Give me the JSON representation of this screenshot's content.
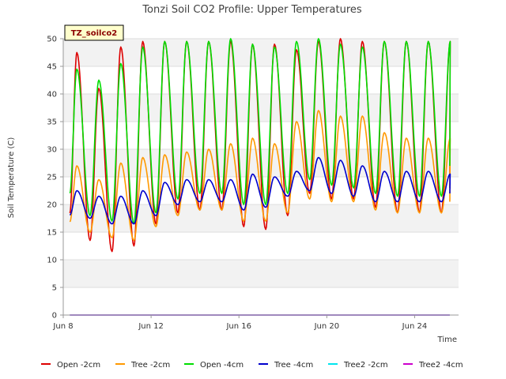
{
  "chart_data": {
    "type": "line",
    "title": "Tonzi Soil CO2 Profile: Upper Temperatures",
    "xlabel": "Time",
    "ylabel": "Soil Temperature (C)",
    "ylim": [
      0,
      50
    ],
    "xlim": [
      0,
      18
    ],
    "y_ticks": [
      0,
      5,
      10,
      15,
      20,
      25,
      30,
      35,
      40,
      45,
      50
    ],
    "x_ticks": [
      {
        "label": "Jun 8",
        "day": 0
      },
      {
        "label": "Jun 12",
        "day": 4
      },
      {
        "label": "Jun 16",
        "day": 8
      },
      {
        "label": "Jun 20",
        "day": 12
      },
      {
        "label": "Jun 24",
        "day": 16
      }
    ],
    "x_unit": "days since Jun 8",
    "tag": "TZ_soilco2",
    "grid": true,
    "legend_position": "bottom",
    "daily_peak_hour_fraction": 0.62,
    "series": [
      {
        "name": "Open -2cm",
        "color": "#dd0000",
        "daily_max": [
          47.5,
          41,
          48.5,
          49.5,
          49.5,
          49.5,
          49.5,
          49.5,
          49,
          49,
          48,
          49.5,
          50,
          49.5,
          49.5,
          49.5,
          49.5,
          49.5
        ],
        "daily_min": [
          14.5,
          13.5,
          11.5,
          12.5,
          16.5,
          18.5,
          19,
          19,
          16,
          15.5,
          18,
          22,
          21,
          21,
          19.5,
          18.5,
          18.5,
          18.5
        ],
        "end_value": 23
      },
      {
        "name": "Tree -2cm",
        "color": "#ff9900",
        "daily_max": [
          27,
          24.5,
          27.5,
          28.5,
          29,
          29.5,
          30,
          31,
          32,
          31,
          35,
          37,
          36,
          36,
          33,
          32,
          32,
          32
        ],
        "daily_min": [
          15.5,
          15,
          14,
          13.5,
          16,
          18,
          19,
          19,
          17,
          17,
          18.5,
          21,
          20.5,
          20.5,
          19,
          18.5,
          18.5,
          18.5
        ],
        "end_value": 20.5
      },
      {
        "name": "Open -4cm",
        "color": "#00dd00",
        "daily_max": [
          44.5,
          42.5,
          45.5,
          48.5,
          49.5,
          49.5,
          49.5,
          50,
          49,
          48.5,
          49.5,
          50,
          49,
          48.5,
          49.5,
          49.5,
          49.5,
          49.5
        ],
        "daily_min": [
          19,
          18,
          17,
          16.5,
          18.5,
          21,
          22,
          22,
          20,
          20,
          22,
          24.5,
          23.5,
          23,
          22,
          21.5,
          21.5,
          21.5
        ],
        "end_value": 27
      },
      {
        "name": "Tree -4cm",
        "color": "#0000cc",
        "daily_max": [
          22.5,
          21.5,
          21.5,
          22.5,
          24,
          24.5,
          24.5,
          24.5,
          25.5,
          25,
          26,
          28.5,
          28,
          27,
          26,
          26,
          26,
          25.5
        ],
        "daily_min": [
          17.5,
          17.5,
          16.5,
          16.5,
          18,
          20,
          20.5,
          20.5,
          19,
          19.5,
          21.5,
          22.5,
          22,
          21.5,
          20.5,
          20.5,
          20.5,
          20.5
        ],
        "end_value": 22
      },
      {
        "name": "Tree2 -2cm",
        "color": "#00e5ee",
        "constant": 0
      },
      {
        "name": "Tree2 -4cm",
        "color": "#cc00cc",
        "constant": 0
      }
    ]
  }
}
